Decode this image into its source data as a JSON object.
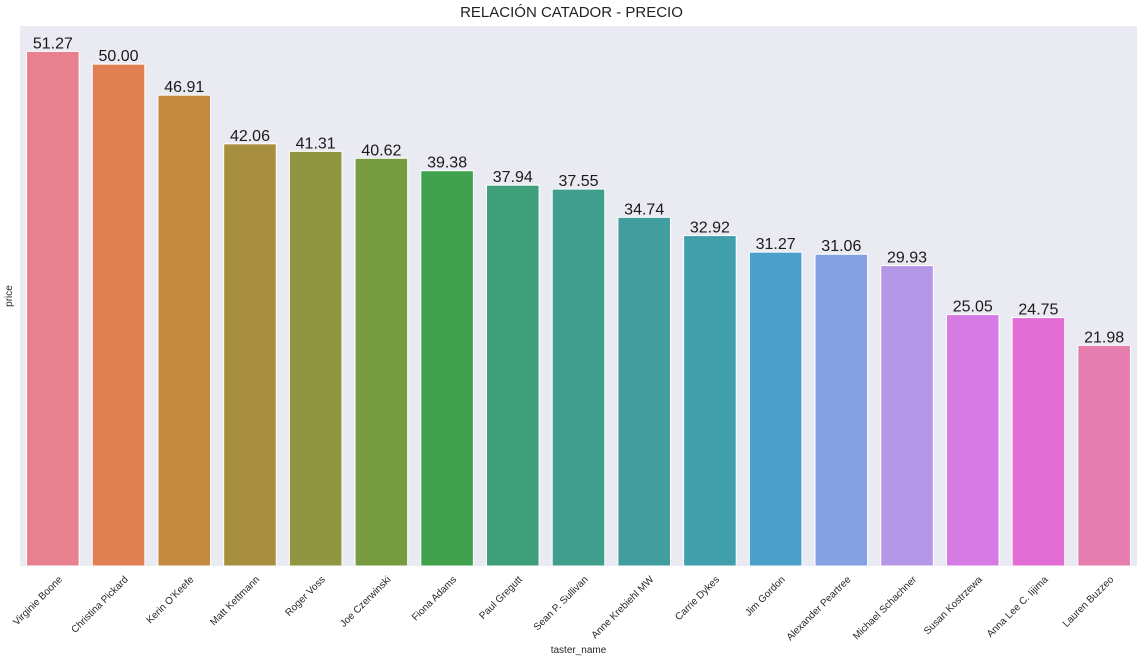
{
  "chart_data": {
    "type": "bar",
    "title": "RELACIÓN CATADOR - PRECIO",
    "xlabel": "taster_name",
    "ylabel": "price",
    "categories": [
      "Virginie Boone",
      "Christina Pickard",
      "Kerin O’Keefe",
      "Matt Kettmann",
      "Roger Voss",
      "Joe Czerwinski",
      "Fiona Adams",
      "Paul Gregutt",
      "Sean P. Sullivan",
      "Anne Krebiehl MW",
      "Carrie Dykes",
      "Jim Gordon",
      "Alexander Peartree",
      "Michael Schachner",
      "Susan Kostrzewa",
      "Anna Lee C. Iijima",
      "Lauren Buzzeo"
    ],
    "values": [
      51.27,
      50.0,
      46.91,
      42.06,
      41.31,
      40.62,
      39.38,
      37.94,
      37.55,
      34.74,
      32.92,
      31.27,
      31.06,
      29.93,
      25.05,
      24.75,
      21.98
    ],
    "value_labels": [
      "51.27",
      "50.00",
      "46.91",
      "42.06",
      "41.31",
      "40.62",
      "39.38",
      "37.94",
      "37.55",
      "34.74",
      "32.92",
      "31.27",
      "31.06",
      "29.93",
      "25.05",
      "24.75",
      "21.98"
    ],
    "ylim": [
      0,
      53.8
    ],
    "y_ticks_visible": false,
    "grid": false,
    "background": "#eaeaf2",
    "colors": [
      "#e8818f",
      "#e08052",
      "#c4893f",
      "#a88f40",
      "#8f963f",
      "#779c3f",
      "#40a24d",
      "#3e9f7a",
      "#3f9e8c",
      "#429e9e",
      "#419eab",
      "#4b9fcb",
      "#84a1e2",
      "#b497e7",
      "#d57be3",
      "#e26dd5",
      "#e67daf"
    ]
  }
}
